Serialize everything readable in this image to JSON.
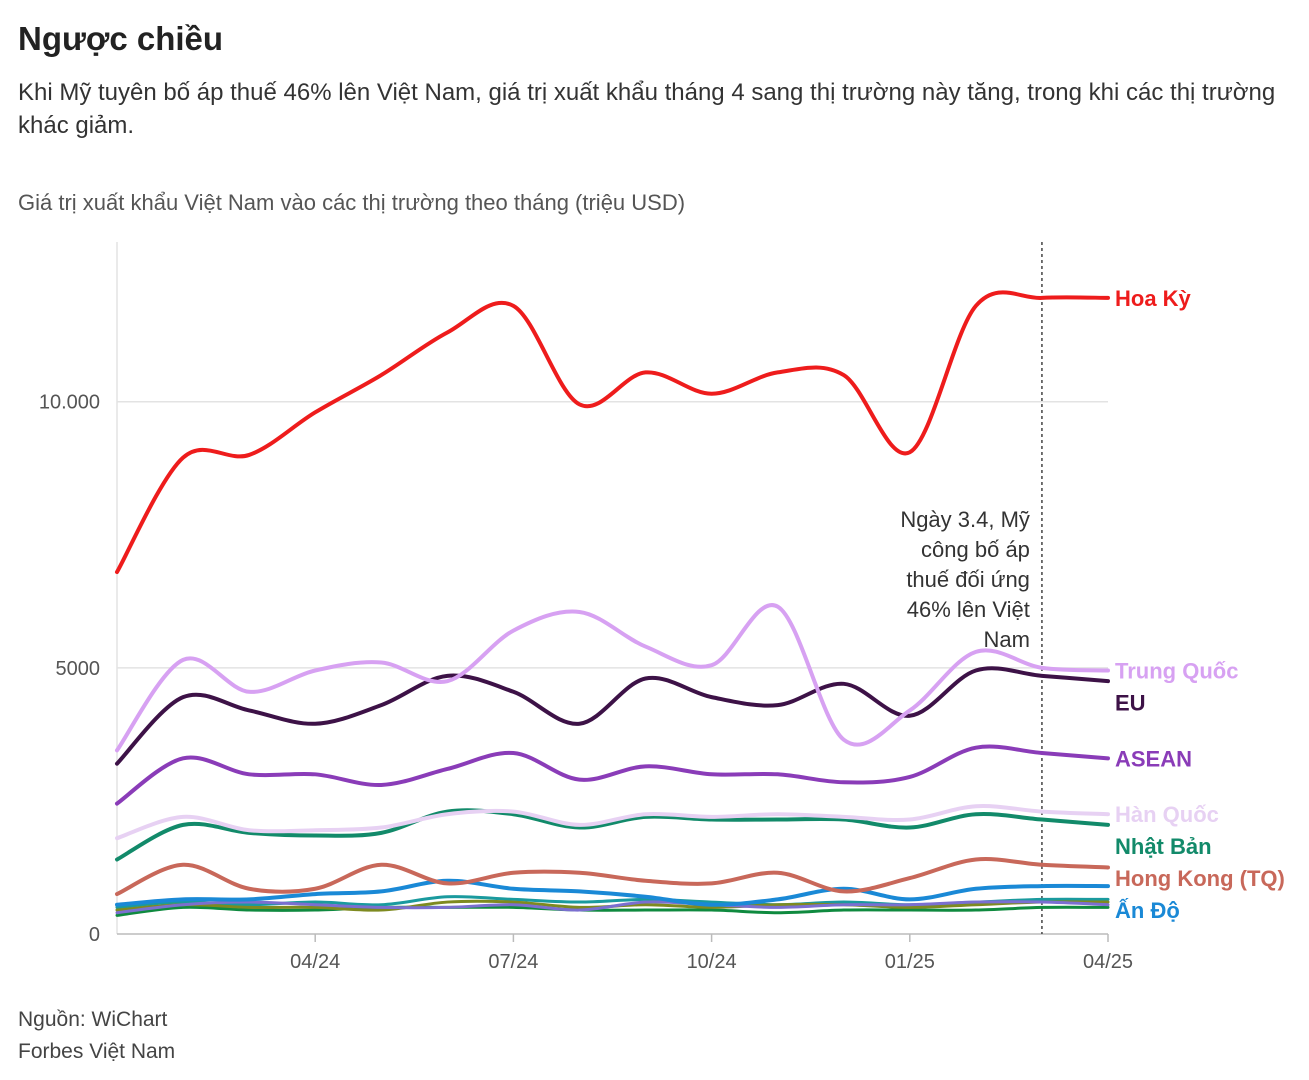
{
  "header": {
    "title": "Ngược chiều",
    "subtitle": "Khi Mỹ tuyên bố áp thuế 46% lên Việt Nam, giá trị xuất khẩu tháng 4 sang thị trường này tăng, trong khi các thị trường khác giảm.",
    "chart_description": "Giá trị xuất khẩu Việt Nam vào các thị trường theo tháng (triệu USD)"
  },
  "footer": {
    "source": "Nguồn: WiChart",
    "publisher": "Forbes Việt Nam"
  },
  "chart_data": {
    "type": "line",
    "x": [
      "01/24",
      "02/24",
      "03/24",
      "04/24",
      "05/24",
      "06/24",
      "07/24",
      "08/24",
      "09/24",
      "10/24",
      "11/24",
      "12/24",
      "01/25",
      "02/25",
      "03/25",
      "04/25"
    ],
    "x_tick_labels": [
      "04/24",
      "07/24",
      "10/24",
      "01/25",
      "04/25"
    ],
    "y_tick_labels": [
      "0",
      "5000",
      "10.000"
    ],
    "y_ticks": [
      0,
      5000,
      10000
    ],
    "ylim": [
      0,
      13000
    ],
    "grid": "horizontal",
    "legend": "direct labels at line ends",
    "annotation": {
      "x": "03/25",
      "lines": [
        "Ngày 3.4, Mỹ",
        "công bố áp",
        "thuế đối ứng",
        "46% lên Việt",
        "Nam"
      ]
    },
    "series": [
      {
        "name": "Hoa Kỳ",
        "color": "#ee1c1c",
        "values": [
          6800,
          8950,
          9000,
          9800,
          10500,
          11300,
          11800,
          9950,
          10550,
          10150,
          10550,
          10500,
          9050,
          11800,
          11950,
          11950
        ]
      },
      {
        "name": "Trung Quốc",
        "color": "#d7a1f2",
        "values": [
          3450,
          5150,
          4550,
          4950,
          5100,
          4750,
          5700,
          6050,
          5400,
          5050,
          6150,
          3650,
          4200,
          5300,
          5000,
          4950
        ]
      },
      {
        "name": "EU",
        "color": "#3d1247",
        "values": [
          3200,
          4450,
          4200,
          3950,
          4300,
          4850,
          4550,
          3950,
          4800,
          4450,
          4300,
          4700,
          4100,
          4950,
          4850,
          4750
        ]
      },
      {
        "name": "ASEAN",
        "color": "#8a3cb8",
        "values": [
          2450,
          3300,
          3000,
          3000,
          2800,
          3100,
          3400,
          2900,
          3150,
          3000,
          3000,
          2850,
          2950,
          3500,
          3400,
          3300
        ]
      },
      {
        "name": "Hàn Quốc",
        "color": "#e7d1f3",
        "values": [
          1800,
          2200,
          1950,
          1950,
          2000,
          2250,
          2300,
          2050,
          2250,
          2200,
          2250,
          2200,
          2150,
          2400,
          2300,
          2250
        ]
      },
      {
        "name": "Nhật Bản",
        "color": "#128a6a",
        "values": [
          1400,
          2050,
          1900,
          1850,
          1900,
          2300,
          2250,
          2000,
          2200,
          2150,
          2150,
          2150,
          2000,
          2250,
          2150,
          2050
        ]
      },
      {
        "name": "Hong Kong (TQ)",
        "color": "#c8685a",
        "values": [
          750,
          1300,
          850,
          850,
          1300,
          950,
          1150,
          1150,
          1000,
          950,
          1150,
          800,
          1050,
          1400,
          1300,
          1250
        ]
      },
      {
        "name": "Ấn Độ",
        "color": "#1a89d6",
        "values": [
          550,
          650,
          650,
          750,
          800,
          1000,
          850,
          800,
          700,
          550,
          650,
          850,
          650,
          850,
          900,
          900
        ]
      },
      {
        "name": "",
        "color": "#7b6fd0",
        "values": [
          400,
          550,
          600,
          550,
          500,
          500,
          550,
          450,
          600,
          550,
          500,
          550,
          550,
          600,
          600,
          550
        ]
      },
      {
        "name": "",
        "color": "#7e8a20",
        "values": [
          450,
          550,
          500,
          500,
          450,
          600,
          600,
          500,
          550,
          500,
          550,
          550,
          500,
          550,
          600,
          600
        ]
      },
      {
        "name": "",
        "color": "#1a9a9e",
        "values": [
          500,
          600,
          550,
          600,
          550,
          700,
          650,
          600,
          650,
          600,
          550,
          600,
          550,
          600,
          650,
          650
        ]
      },
      {
        "name": "",
        "color": "#0f8a3f",
        "values": [
          350,
          500,
          450,
          450,
          500,
          500,
          500,
          450,
          450,
          450,
          400,
          450,
          450,
          450,
          500,
          500
        ]
      }
    ]
  }
}
